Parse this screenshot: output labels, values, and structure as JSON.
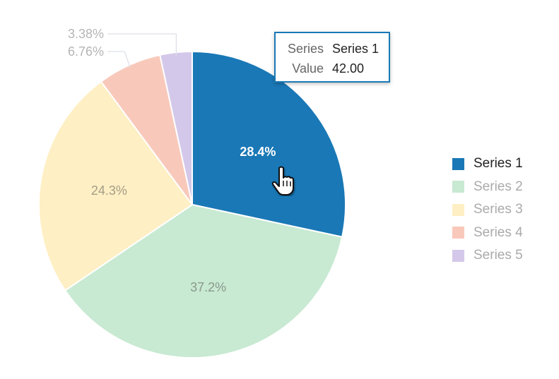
{
  "chart_data": {
    "type": "pie",
    "categories": [
      "Series 1",
      "Series 2",
      "Series 3",
      "Series 4",
      "Series 5"
    ],
    "values": [
      42,
      55,
      36,
      10,
      5
    ],
    "percent_labels": [
      "28.4%",
      "37.2%",
      "24.3%",
      "6.76%",
      "3.38%"
    ],
    "colors": [
      "#1a78b6",
      "#c8e9d2",
      "#feefc4",
      "#f8c9bb",
      "#d4c8ea"
    ],
    "highlighted_series": "Series 1",
    "legend_position": "right",
    "start_angle": "top, clockwise"
  },
  "tooltip": {
    "series_key": "Series",
    "series_value": "Series 1",
    "value_key": "Value",
    "value_value": "42.00"
  },
  "legend": {
    "items": [
      {
        "label": "Series 1",
        "color": "#1a78b6",
        "active": true
      },
      {
        "label": "Series 2",
        "color": "#c8e9d2",
        "active": false
      },
      {
        "label": "Series 3",
        "color": "#feefc4",
        "active": false
      },
      {
        "label": "Series 4",
        "color": "#f8c9bb",
        "active": false
      },
      {
        "label": "Series 5",
        "color": "#d4c8ea",
        "active": false
      }
    ]
  },
  "cursor_icon": "hand-pointer-icon"
}
